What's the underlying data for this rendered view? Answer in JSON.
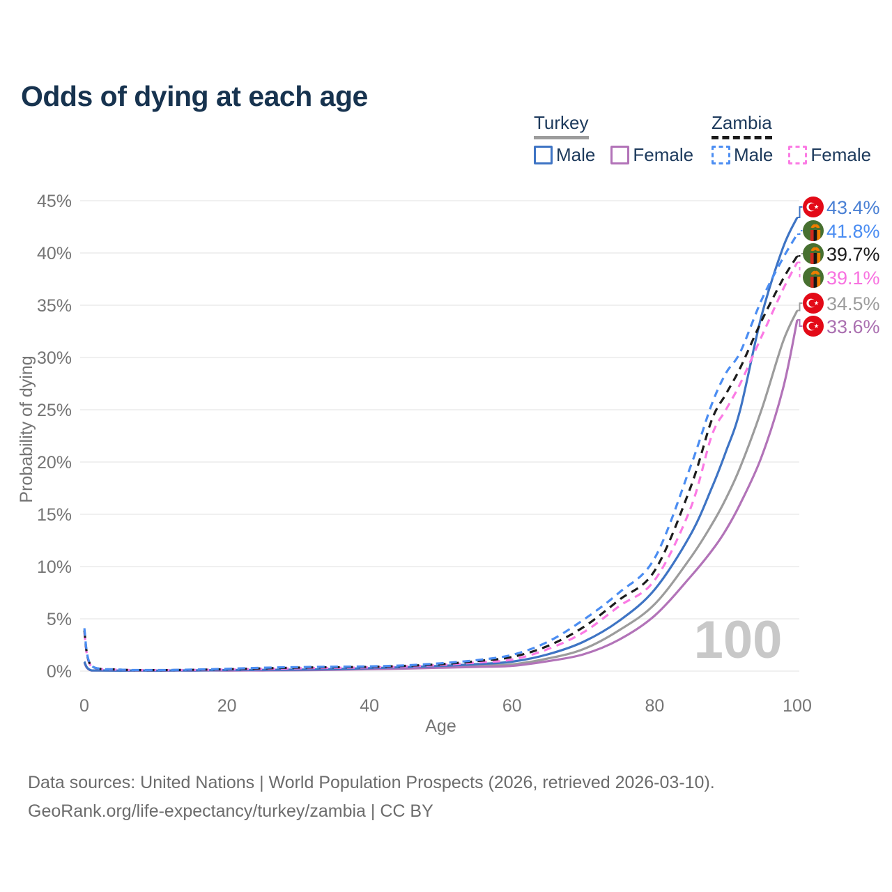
{
  "title": "Odds of dying at each age",
  "legend": {
    "groups": [
      {
        "country": "Turkey",
        "items": [
          {
            "label": "Male"
          },
          {
            "label": "Female"
          }
        ]
      },
      {
        "country": "Zambia",
        "items": [
          {
            "label": "Male"
          },
          {
            "label": "Female"
          }
        ]
      }
    ]
  },
  "footer": {
    "line1": "Data sources: United Nations | World Population Prospects (2026, retrieved 2026-03-10).",
    "line2": "GeoRank.org/life-expectancy/turkey/zambia | CC BY"
  },
  "chart_data": {
    "type": "line",
    "title": "Odds of dying at each age",
    "xlabel": "Age",
    "ylabel": "Probability of dying",
    "xlim": [
      0,
      100
    ],
    "ylim": [
      0,
      45
    ],
    "grid": true,
    "hover_age_indicator": "100",
    "x_ticks": [
      {
        "value": 0,
        "label": "0"
      },
      {
        "value": 20,
        "label": "20"
      },
      {
        "value": 40,
        "label": "40"
      },
      {
        "value": 60,
        "label": "60"
      },
      {
        "value": 80,
        "label": "80"
      },
      {
        "value": 100,
        "label": "100"
      }
    ],
    "y_ticks": [
      {
        "value": 0,
        "label": "0%"
      },
      {
        "value": 5,
        "label": "5%"
      },
      {
        "value": 10,
        "label": "10%"
      },
      {
        "value": 15,
        "label": "15%"
      },
      {
        "value": 20,
        "label": "20%"
      },
      {
        "value": 25,
        "label": "25%"
      },
      {
        "value": 30,
        "label": "30%"
      },
      {
        "value": 35,
        "label": "35%"
      },
      {
        "value": 40,
        "label": "40%"
      },
      {
        "value": 45,
        "label": "45%"
      }
    ],
    "ages": [
      0,
      1,
      5,
      10,
      15,
      20,
      25,
      30,
      35,
      40,
      45,
      50,
      55,
      60,
      65,
      70,
      75,
      80,
      85,
      88,
      90,
      92,
      95,
      98,
      100
    ],
    "series": [
      {
        "id": "turkey-both",
        "name": "Turkey (both sexes)",
        "country": "Turkey",
        "sex": "Both",
        "color": "#9c9c9c",
        "dashed": false,
        "flag": "turkey",
        "end_label": "34.5%",
        "end_value": 34.5,
        "label_color": "#9c9c9c",
        "values": [
          0.85,
          0.065,
          0.035,
          0.035,
          0.055,
          0.075,
          0.09,
          0.11,
          0.15,
          0.22,
          0.31,
          0.41,
          0.53,
          0.65,
          1.2,
          2.1,
          3.9,
          6.4,
          10.8,
          14.0,
          16.5,
          19.5,
          25.0,
          31.5,
          34.5
        ]
      },
      {
        "id": "turkey-female",
        "name": "Turkey Female",
        "country": "Turkey",
        "sex": "Female",
        "color": "#b273b8",
        "dashed": false,
        "flag": "turkey",
        "end_label": "33.6%",
        "end_value": 33.6,
        "label_color": "#aa6fb0",
        "values": [
          0.8,
          0.06,
          0.03,
          0.03,
          0.04,
          0.05,
          0.06,
          0.08,
          0.12,
          0.18,
          0.24,
          0.32,
          0.4,
          0.5,
          0.95,
          1.6,
          3.0,
          5.3,
          9.0,
          11.5,
          13.5,
          16.0,
          20.5,
          27.0,
          33.6
        ]
      },
      {
        "id": "turkey-male",
        "name": "Turkey Male",
        "country": "Turkey",
        "sex": "Male",
        "color": "#3e74c4",
        "dashed": false,
        "flag": "turkey",
        "end_label": "43.4%",
        "end_value": 43.4,
        "label_color": "#4a80d4",
        "values": [
          0.9,
          0.07,
          0.04,
          0.04,
          0.07,
          0.1,
          0.12,
          0.14,
          0.19,
          0.28,
          0.38,
          0.5,
          0.67,
          0.9,
          1.6,
          2.8,
          4.8,
          7.8,
          13.0,
          17.5,
          21.0,
          25.0,
          34.0,
          40.5,
          43.4
        ]
      },
      {
        "id": "zambia-female",
        "name": "Zambia Female",
        "country": "Zambia",
        "sex": "Female",
        "color": "#fb7ae4",
        "dashed": true,
        "flag": "zambia",
        "end_label": "39.1%",
        "end_value": 39.1,
        "label_color": "#f871e0",
        "values": [
          3.7,
          0.45,
          0.13,
          0.09,
          0.11,
          0.15,
          0.21,
          0.27,
          0.31,
          0.35,
          0.44,
          0.58,
          0.82,
          1.1,
          2.1,
          3.7,
          6.2,
          8.7,
          15.5,
          22.5,
          25.0,
          27.5,
          32.0,
          36.5,
          39.1
        ]
      },
      {
        "id": "zambia-both",
        "name": "Zambia (both sexes)",
        "country": "Zambia",
        "sex": "Both",
        "color": "#1c1c1c",
        "dashed": true,
        "flag": "zambia",
        "end_label": "39.7%",
        "end_value": 39.7,
        "label_color": "#1c1c1c",
        "values": [
          3.9,
          0.48,
          0.14,
          0.095,
          0.12,
          0.18,
          0.26,
          0.33,
          0.37,
          0.4,
          0.5,
          0.66,
          0.95,
          1.35,
          2.4,
          4.2,
          6.8,
          9.6,
          17.5,
          24.0,
          26.5,
          29.0,
          33.5,
          37.5,
          39.7
        ]
      },
      {
        "id": "zambia-male",
        "name": "Zambia Male",
        "country": "Zambia",
        "sex": "Male",
        "color": "#4b8df2",
        "dashed": true,
        "flag": "zambia",
        "end_label": "41.8%",
        "end_value": 41.8,
        "label_color": "#4b8df2",
        "values": [
          4.1,
          0.5,
          0.15,
          0.1,
          0.14,
          0.22,
          0.32,
          0.38,
          0.42,
          0.45,
          0.55,
          0.75,
          1.05,
          1.55,
          2.8,
          4.9,
          7.5,
          10.8,
          19.5,
          25.5,
          28.5,
          30.5,
          35.5,
          39.5,
          41.8
        ]
      }
    ],
    "colors": {
      "grid": "#ebebeb",
      "axis_text": "#757575",
      "watermark": "#c8c8c8",
      "turkey_flag_red": "#e30a17",
      "zambia_flag_green": "#477030",
      "zambia_flag_orange": "#ef7d00",
      "zambia_flag_red": "#d2281e"
    }
  }
}
